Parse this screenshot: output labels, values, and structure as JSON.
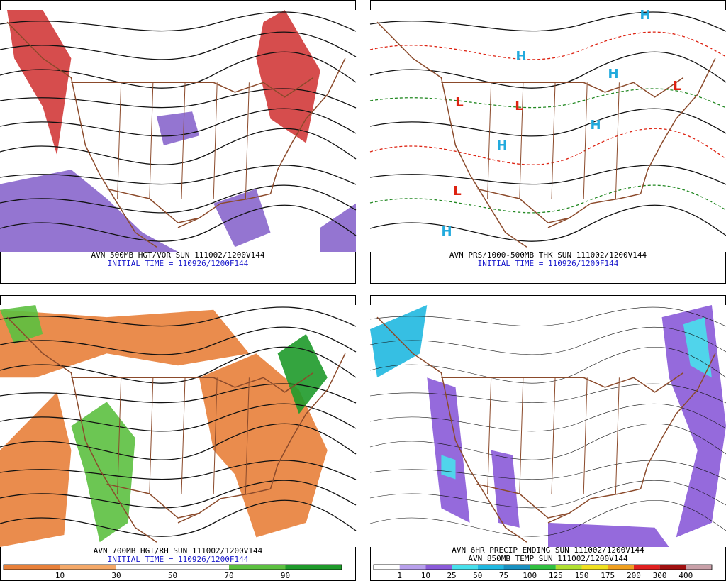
{
  "panels": [
    {
      "lines": [
        "AVN 500MB HGT/VOR SUN 111002/1200V144",
        "INITIAL TIME = 110926/1200F144"
      ],
      "line_colors": [
        "#000000",
        "#1a1acc"
      ]
    },
    {
      "lines": [
        "AVN PRS/1000-500MB THK SUN 111002/1200V144",
        "INITIAL TIME = 110926/1200F144"
      ],
      "line_colors": [
        "#000000",
        "#1a1acc"
      ],
      "markers": [
        "H",
        "H",
        "H",
        "H",
        "H",
        "H",
        "L",
        "L",
        "L",
        "L"
      ],
      "marker_colors": {
        "H": "#22aadd",
        "L": "#dd2211"
      }
    },
    {
      "lines": [
        "AVN 700MB HGT/RH SUN 111002/1200V144",
        "INITIAL TIME = 110926/1200F144"
      ],
      "line_colors": [
        "#000000",
        "#1a1acc"
      ],
      "colorbar": {
        "labels": [
          "10",
          "30",
          "50",
          "70",
          "90"
        ],
        "colors": [
          "#e8803a",
          "#f4a868",
          "#ffffff",
          "#ffffff",
          "#5cc040",
          "#1e9a2a"
        ]
      }
    },
    {
      "lines": [
        "AVN 6HR PRECIP ENDING SUN 111002/1200V144",
        "AVN 850MB TEMP SUN 111002/1200V144"
      ],
      "line_colors": [
        "#000000",
        "#000000"
      ],
      "colorbar": {
        "labels": [
          "1",
          "10",
          "25",
          "50",
          "75",
          "100",
          "125",
          "150",
          "175",
          "200",
          "300",
          "400"
        ],
        "colors": [
          "#ffffff",
          "#b8a0ec",
          "#8a5ad8",
          "#48e0ec",
          "#20b8e0",
          "#1890c0",
          "#30c040",
          "#b0e030",
          "#f0e020",
          "#f0a020",
          "#e02020",
          "#a01010",
          "#c8a0a8"
        ]
      }
    }
  ]
}
